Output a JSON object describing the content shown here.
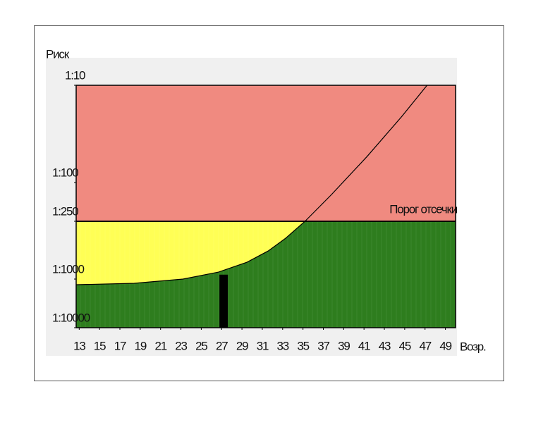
{
  "chart_data": {
    "type": "line",
    "y_label": "Риск",
    "x_label": "Возр.",
    "xlim": [
      12.7,
      50
    ],
    "xticks": [
      13,
      15,
      17,
      19,
      21,
      23,
      25,
      27,
      29,
      31,
      33,
      35,
      37,
      39,
      41,
      43,
      45,
      47,
      49
    ],
    "ylim": [
      10,
      10000
    ],
    "yticks": [
      {
        "value": 10,
        "label": "1:10"
      },
      {
        "value": 100,
        "label": "1:100"
      },
      {
        "value": 250,
        "label": "1:250"
      },
      {
        "value": 1000,
        "label": "1:1000"
      },
      {
        "value": 10000,
        "label": "1:10000"
      }
    ],
    "series": [
      {
        "color": "#000000",
        "x": [
          12.7,
          18.4,
          23.2,
          26.7,
          29.5,
          31.6,
          33.3,
          35.2,
          37.8,
          41.3,
          44.7,
          47.2
        ],
        "values": [
          1306,
          1222,
          1000,
          845,
          667,
          508,
          375,
          250,
          133,
          54,
          21,
          10
        ]
      }
    ],
    "threshold": {
      "value": 250,
      "label": "Порог отсечки"
    },
    "marker": {
      "x": 27.2,
      "y": 900,
      "color": "#000000"
    },
    "colors": {
      "high": "#f08a80",
      "mid": "#ffff55",
      "low": "#2e7d1e"
    }
  }
}
